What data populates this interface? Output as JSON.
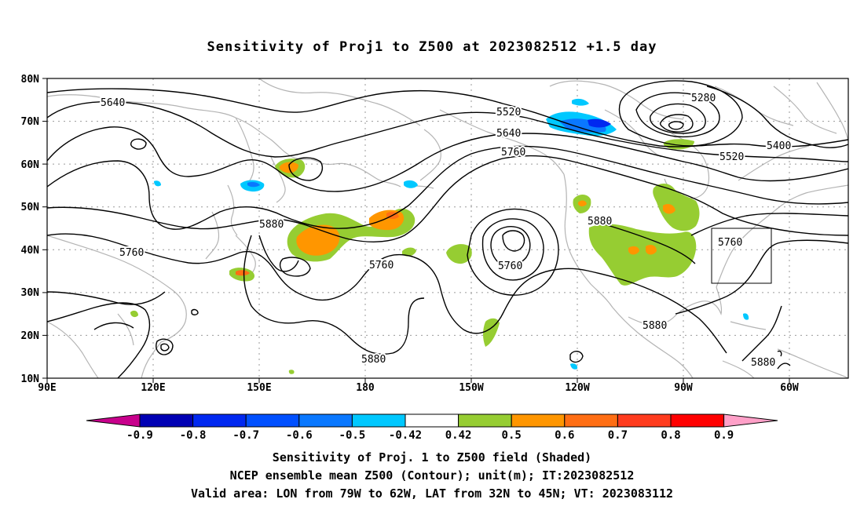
{
  "title": "Sensitivity of Proj1 to Z500 at 2023082512 +1.5 day",
  "map": {
    "lon_range": [
      "90E",
      "40W"
    ],
    "lat_range": [
      "10N",
      "80N"
    ],
    "lat_ticks": [
      "80N",
      "70N",
      "60N",
      "50N",
      "40N",
      "30N",
      "20N",
      "10N"
    ],
    "lon_ticks": [
      "90E",
      "120E",
      "150E",
      "180",
      "150W",
      "120W",
      "90W",
      "60W"
    ],
    "contour_labels": [
      "5640",
      "5520",
      "5280",
      "5640",
      "5760",
      "5400",
      "5520",
      "5880",
      "5880",
      "5760",
      "5760",
      "5760",
      "5760",
      "5880",
      "5880",
      "5880"
    ],
    "valid_box": {
      "lon": [
        "79W",
        "62W"
      ],
      "lat": [
        "32N",
        "45N"
      ]
    },
    "colors": {
      "land_outline": "#b4b4b4",
      "grid": "#9a9a9a",
      "contour": "#000000",
      "box": "#000000"
    }
  },
  "colorbar": {
    "labels": [
      "-0.9",
      "-0.8",
      "-0.7",
      "-0.6",
      "-0.5",
      "-0.42",
      "0.42",
      "0.5",
      "0.6",
      "0.7",
      "0.8",
      "0.9"
    ],
    "colors": [
      "#0000b4",
      "#0028f0",
      "#0050ff",
      "#0a78ff",
      "#00c8ff",
      "#ffffff",
      "#96cd32",
      "#ff9600",
      "#ff6e14",
      "#ff3c1e",
      "#ff0000"
    ],
    "low_end_color": "#c8008c",
    "high_end_color": "#ffa0c8"
  },
  "captions": {
    "line1": "Sensitivity of Proj. 1 to Z500 field (Shaded)",
    "line2": "NCEP ensemble mean Z500 (Contour); unit(m); IT:2023082512",
    "line3": "Valid area: LON from 79W to 62W, LAT from 32N to 45N; VT: 2023083112"
  }
}
